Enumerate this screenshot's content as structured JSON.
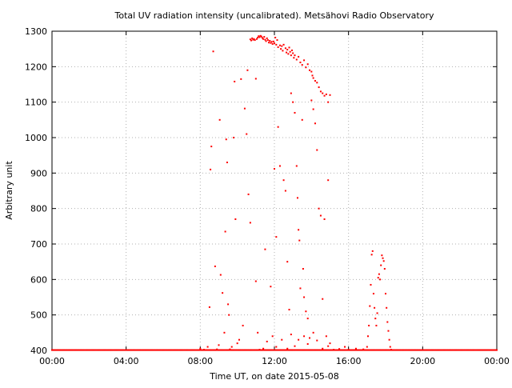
{
  "chart_data": {
    "type": "scatter",
    "title": "Total UV radiation intensity (uncalibrated). Metsähovi Radio Observatory",
    "xlabel": "Time UT, on date 2015-05-08",
    "ylabel": "Arbitrary unit",
    "xlim": [
      0,
      24
    ],
    "ylim": [
      400,
      1300
    ],
    "x_tick_values": [
      0,
      4,
      8,
      12,
      16,
      20,
      24
    ],
    "x_tick_labels": [
      "00:00",
      "04:00",
      "08:00",
      "12:00",
      "16:00",
      "20:00",
      "00:00"
    ],
    "y_tick_values": [
      400,
      500,
      600,
      700,
      800,
      900,
      1000,
      1100,
      1200,
      1300
    ],
    "y_tick_labels": [
      "400",
      "500",
      "600",
      "700",
      "800",
      "900",
      "1000",
      "1100",
      "1200",
      "1300"
    ],
    "grid": true,
    "legend": "none",
    "series": [
      {
        "name": "UV intensity",
        "color": "#ff0000",
        "baseline": {
          "x_start": 0,
          "x_end": 24,
          "step_hours": 0.05,
          "value": 401
        },
        "points": [
          [
            8.0,
            405
          ],
          [
            8.2,
            402
          ],
          [
            8.4,
            410
          ],
          [
            8.5,
            522
          ],
          [
            8.55,
            910
          ],
          [
            8.6,
            975
          ],
          [
            8.7,
            1243
          ],
          [
            8.8,
            637
          ],
          [
            8.9,
            403
          ],
          [
            9.0,
            415
          ],
          [
            9.05,
            1050
          ],
          [
            9.1,
            613
          ],
          [
            9.2,
            562
          ],
          [
            9.3,
            450
          ],
          [
            9.35,
            735
          ],
          [
            9.4,
            995
          ],
          [
            9.45,
            930
          ],
          [
            9.5,
            530
          ],
          [
            9.55,
            500
          ],
          [
            9.6,
            403
          ],
          [
            9.7,
            410
          ],
          [
            9.8,
            1000
          ],
          [
            9.85,
            1158
          ],
          [
            9.9,
            770
          ],
          [
            10.0,
            420
          ],
          [
            10.1,
            430
          ],
          [
            10.2,
            1165
          ],
          [
            10.3,
            470
          ],
          [
            10.4,
            1082
          ],
          [
            10.5,
            1010
          ],
          [
            10.55,
            1190
          ],
          [
            10.6,
            840
          ],
          [
            10.7,
            1277
          ],
          [
            10.75,
            1274
          ],
          [
            10.8,
            1280
          ],
          [
            10.85,
            1276
          ],
          [
            10.9,
            1278
          ],
          [
            10.95,
            1275
          ],
          [
            11.0,
            1166
          ],
          [
            11.05,
            1278
          ],
          [
            11.1,
            1282
          ],
          [
            11.15,
            1286
          ],
          [
            11.2,
            1283
          ],
          [
            11.25,
            1287
          ],
          [
            11.3,
            1285
          ],
          [
            11.35,
            1281
          ],
          [
            11.4,
            1278
          ],
          [
            11.45,
            1284
          ],
          [
            11.5,
            1276
          ],
          [
            11.55,
            1272
          ],
          [
            11.6,
            1280
          ],
          [
            11.65,
            1275
          ],
          [
            11.7,
            1268
          ],
          [
            11.75,
            1273
          ],
          [
            11.8,
            1267
          ],
          [
            11.85,
            1270
          ],
          [
            11.9,
            1264
          ],
          [
            11.95,
            1271
          ],
          [
            12.0,
            1266
          ],
          [
            12.05,
            1282
          ],
          [
            12.1,
            1262
          ],
          [
            12.15,
            1275
          ],
          [
            12.2,
            1255
          ],
          [
            12.3,
            1260
          ],
          [
            12.35,
            1250
          ],
          [
            12.4,
            1258
          ],
          [
            12.45,
            1245
          ],
          [
            12.5,
            1262
          ],
          [
            12.6,
            1252
          ],
          [
            12.65,
            1240
          ],
          [
            12.7,
            1248
          ],
          [
            12.75,
            1236
          ],
          [
            12.8,
            1254
          ],
          [
            12.85,
            1242
          ],
          [
            12.9,
            1232
          ],
          [
            12.95,
            1246
          ],
          [
            13.0,
            1238
          ],
          [
            13.05,
            1225
          ],
          [
            13.1,
            1232
          ],
          [
            13.2,
            1220
          ],
          [
            13.3,
            1228
          ],
          [
            13.4,
            1212
          ],
          [
            13.5,
            1205
          ],
          [
            13.6,
            1218
          ],
          [
            13.7,
            1198
          ],
          [
            13.8,
            1207
          ],
          [
            13.9,
            1190
          ],
          [
            14.0,
            1186
          ],
          [
            14.05,
            1175
          ],
          [
            14.1,
            1168
          ],
          [
            14.2,
            1160
          ],
          [
            14.3,
            1155
          ],
          [
            14.4,
            1142
          ],
          [
            14.5,
            1130
          ],
          [
            14.6,
            1125
          ],
          [
            14.7,
            1118
          ],
          [
            14.8,
            1122
          ],
          [
            14.9,
            1100
          ],
          [
            15.0,
            1120
          ],
          [
            10.7,
            760
          ],
          [
            11.0,
            595
          ],
          [
            11.1,
            450
          ],
          [
            11.2,
            402
          ],
          [
            11.5,
            685
          ],
          [
            11.8,
            580
          ],
          [
            12.0,
            912
          ],
          [
            12.1,
            720
          ],
          [
            12.2,
            1030
          ],
          [
            12.3,
            920
          ],
          [
            12.5,
            880
          ],
          [
            12.6,
            850
          ],
          [
            12.7,
            650
          ],
          [
            12.8,
            515
          ],
          [
            12.9,
            1125
          ],
          [
            13.0,
            1100
          ],
          [
            13.1,
            1070
          ],
          [
            13.2,
            920
          ],
          [
            13.25,
            830
          ],
          [
            13.3,
            740
          ],
          [
            13.35,
            710
          ],
          [
            13.4,
            575
          ],
          [
            13.5,
            1050
          ],
          [
            13.55,
            630
          ],
          [
            13.6,
            550
          ],
          [
            13.7,
            510
          ],
          [
            13.8,
            490
          ],
          [
            13.9,
            435
          ],
          [
            14.0,
            1105
          ],
          [
            14.1,
            1080
          ],
          [
            14.2,
            1040
          ],
          [
            14.3,
            965
          ],
          [
            14.4,
            800
          ],
          [
            14.5,
            780
          ],
          [
            14.6,
            545
          ],
          [
            14.7,
            770
          ],
          [
            14.8,
            440
          ],
          [
            14.9,
            880
          ],
          [
            15.0,
            420
          ],
          [
            11.4,
            405
          ],
          [
            11.6,
            425
          ],
          [
            11.9,
            440
          ],
          [
            12.1,
            410
          ],
          [
            12.4,
            430
          ],
          [
            12.7,
            405
          ],
          [
            12.9,
            445
          ],
          [
            13.1,
            412
          ],
          [
            13.3,
            430
          ],
          [
            13.6,
            440
          ],
          [
            13.8,
            418
          ],
          [
            14.1,
            450
          ],
          [
            14.3,
            428
          ],
          [
            14.6,
            405
          ],
          [
            14.9,
            412
          ],
          [
            15.2,
            402
          ],
          [
            15.5,
            404
          ],
          [
            15.8,
            410
          ],
          [
            16.0,
            402
          ],
          [
            16.4,
            405
          ],
          [
            16.8,
            403
          ],
          [
            17.0,
            410
          ],
          [
            17.05,
            440
          ],
          [
            17.1,
            470
          ],
          [
            17.15,
            525
          ],
          [
            17.2,
            585
          ],
          [
            17.25,
            670
          ],
          [
            17.3,
            680
          ],
          [
            17.35,
            560
          ],
          [
            17.4,
            520
          ],
          [
            17.45,
            490
          ],
          [
            17.5,
            470
          ],
          [
            17.55,
            505
          ],
          [
            17.6,
            605
          ],
          [
            17.65,
            615
          ],
          [
            17.7,
            600
          ],
          [
            17.75,
            640
          ],
          [
            17.8,
            668
          ],
          [
            17.85,
            660
          ],
          [
            17.9,
            652
          ],
          [
            17.95,
            630
          ],
          [
            18.0,
            560
          ],
          [
            18.05,
            520
          ],
          [
            18.1,
            480
          ],
          [
            18.15,
            455
          ],
          [
            18.2,
            430
          ],
          [
            18.25,
            410
          ],
          [
            18.3,
            402
          ]
        ]
      }
    ]
  }
}
